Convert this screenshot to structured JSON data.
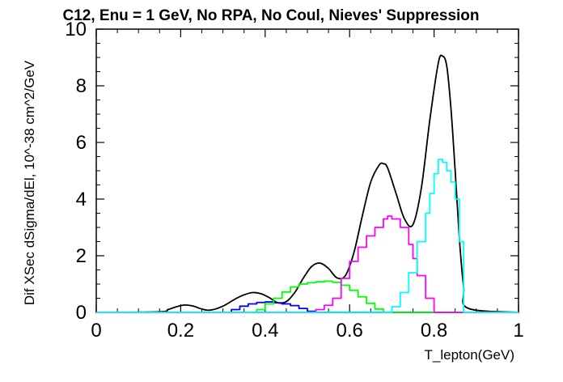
{
  "chart_data": {
    "type": "line",
    "title": "C12, Enu = 1 GeV, No RPA, No Coul, Nieves' Suppression",
    "xlabel": "T_lepton(GeV)",
    "ylabel": "Dif XSec dSigma/dEl, 10^-38 cm^2/GeV",
    "xlim": [
      0,
      1
    ],
    "ylim": [
      0,
      10
    ],
    "xticks": [
      0,
      0.2,
      0.4,
      0.6,
      0.8,
      1
    ],
    "xtick_labels": [
      "0",
      "0.2",
      "0.4",
      "0.6",
      "0.8",
      "1"
    ],
    "yticks": [
      0,
      2,
      4,
      6,
      8,
      10
    ],
    "ytick_labels": [
      "0",
      "2",
      "4",
      "6",
      "8",
      "10"
    ],
    "grid": false,
    "series": [
      {
        "style": "line",
        "color": "#000000",
        "x": [
          0.0,
          0.15,
          0.17,
          0.19,
          0.21,
          0.23,
          0.25,
          0.27,
          0.3,
          0.33,
          0.35,
          0.37,
          0.39,
          0.41,
          0.43,
          0.45,
          0.47,
          0.49,
          0.51,
          0.53,
          0.55,
          0.57,
          0.59,
          0.61,
          0.63,
          0.65,
          0.67,
          0.68,
          0.69,
          0.71,
          0.73,
          0.75,
          0.77,
          0.79,
          0.81,
          0.82,
          0.83,
          0.84,
          0.85,
          0.86,
          0.87,
          0.88,
          1.0
        ],
        "y": [
          0.0,
          0.02,
          0.1,
          0.2,
          0.26,
          0.22,
          0.12,
          0.08,
          0.22,
          0.48,
          0.62,
          0.7,
          0.66,
          0.52,
          0.34,
          0.38,
          0.7,
          1.2,
          1.62,
          1.74,
          1.55,
          1.22,
          1.3,
          2.1,
          3.4,
          4.6,
          5.2,
          5.25,
          5.1,
          4.2,
          3.3,
          3.1,
          4.4,
          6.8,
          8.8,
          9.05,
          8.7,
          7.2,
          5.0,
          2.6,
          0.9,
          0.15,
          0.0
        ]
      },
      {
        "style": "step",
        "color": "#0000ff",
        "x": [
          0.0,
          0.3,
          0.32,
          0.34,
          0.36,
          0.38,
          0.4,
          0.42,
          0.44,
          0.46,
          0.48,
          0.5,
          0.52,
          1.0
        ],
        "y": [
          0.0,
          0.0,
          0.1,
          0.22,
          0.3,
          0.35,
          0.37,
          0.34,
          0.3,
          0.24,
          0.14,
          0.04,
          0.0,
          0.0
        ]
      },
      {
        "style": "step",
        "color": "#00ff00",
        "x": [
          0.0,
          0.35,
          0.38,
          0.4,
          0.42,
          0.44,
          0.46,
          0.48,
          0.5,
          0.52,
          0.54,
          0.56,
          0.58,
          0.6,
          0.62,
          0.64,
          0.66,
          0.68,
          1.0
        ],
        "y": [
          0.0,
          0.0,
          0.1,
          0.3,
          0.5,
          0.72,
          0.9,
          1.0,
          1.05,
          1.08,
          1.1,
          1.06,
          0.96,
          0.78,
          0.55,
          0.32,
          0.12,
          0.0,
          0.0
        ]
      },
      {
        "style": "step",
        "color": "#ff00ff",
        "x": [
          0.0,
          0.5,
          0.52,
          0.54,
          0.56,
          0.58,
          0.6,
          0.62,
          0.64,
          0.66,
          0.68,
          0.69,
          0.7,
          0.72,
          0.74,
          0.75,
          0.76,
          0.78,
          0.8,
          1.0
        ],
        "y": [
          0.0,
          0.0,
          0.1,
          0.25,
          0.5,
          1.2,
          1.8,
          2.3,
          2.7,
          3.0,
          3.3,
          3.4,
          3.3,
          3.0,
          2.4,
          1.9,
          1.3,
          0.5,
          0.0,
          0.0
        ]
      },
      {
        "style": "step",
        "color": "#00ffff",
        "x": [
          0.0,
          0.68,
          0.7,
          0.72,
          0.74,
          0.76,
          0.78,
          0.79,
          0.8,
          0.81,
          0.82,
          0.83,
          0.84,
          0.85,
          0.86,
          0.87,
          1.0
        ],
        "y": [
          0.0,
          0.0,
          0.2,
          0.7,
          1.4,
          2.5,
          3.5,
          4.2,
          4.9,
          5.4,
          5.3,
          5.0,
          4.6,
          4.0,
          2.5,
          0.0,
          0.0
        ]
      }
    ]
  }
}
